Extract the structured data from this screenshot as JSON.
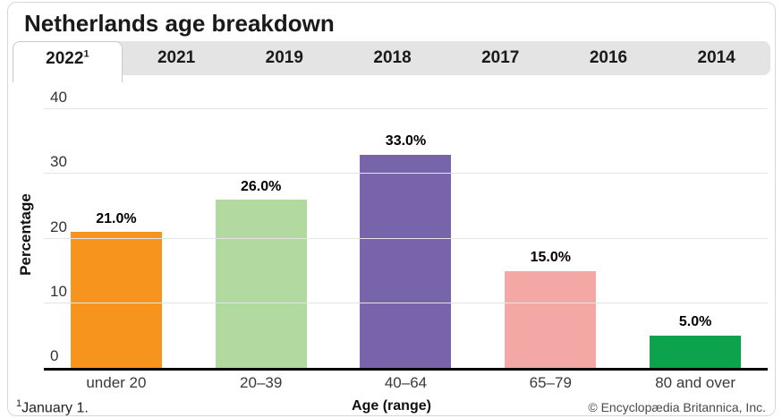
{
  "header": {
    "title": "Netherlands age breakdown"
  },
  "tabs": [
    {
      "label": "2022",
      "superscript": "1",
      "active": true
    },
    {
      "label": "2021",
      "active": false
    },
    {
      "label": "2019",
      "active": false
    },
    {
      "label": "2018",
      "active": false
    },
    {
      "label": "2017",
      "active": false
    },
    {
      "label": "2016",
      "active": false
    },
    {
      "label": "2014",
      "active": false
    }
  ],
  "footer": {
    "footnote_superscript": "1",
    "footnote_text": "January 1.",
    "copyright": "© Encyclopædia Britannica, Inc."
  },
  "chart_data": {
    "type": "bar",
    "title": "Netherlands age breakdown",
    "categories": [
      "under 20",
      "20–39",
      "40–64",
      "65–79",
      "80 and over"
    ],
    "values": [
      21.0,
      26.0,
      33.0,
      15.0,
      5.0
    ],
    "bar_labels": [
      "21.0%",
      "26.0%",
      "33.0%",
      "15.0%",
      "5.0%"
    ],
    "bar_colors": [
      "#F7941E",
      "#B1D9A0",
      "#7764AB",
      "#F4A8A6",
      "#0DA34C"
    ],
    "xlabel": "Age (range)",
    "ylabel": "Percentage",
    "ylim": [
      0,
      40
    ],
    "yticks": [
      0,
      10,
      20,
      30,
      40
    ],
    "grid": true,
    "gridline_color": "#e4e4e4",
    "axis_color": "#000000",
    "legend": "none"
  }
}
